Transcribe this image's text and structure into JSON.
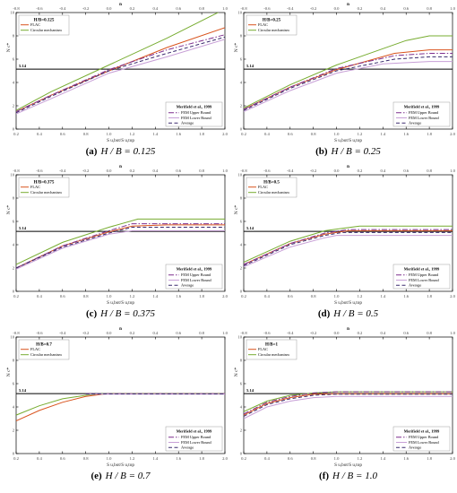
{
  "colors": {
    "flac": "#d9541e",
    "circular": "#77ac30",
    "fem_upper": "#7e2f8e",
    "fem_lower": "#c79fd6",
    "average": "#3a2a6e",
    "ref_line": "#000000",
    "axis": "#000000",
    "tick_label": "#444444"
  },
  "chart_data": [
    {
      "type": "line",
      "caption_prefix": "(a)",
      "caption_math": "H / B = 0.125",
      "panel_label": "H/B=0.125",
      "xlabel": "S u,bot/S u,top",
      "ylabel": "N c*",
      "top_xlabel": "n",
      "xlim": [
        0.2,
        2.0
      ],
      "ylim": [
        0,
        10
      ],
      "x_ticks": [
        "0.2",
        "0.4",
        "0.6",
        "0.8",
        "1.0",
        "1.2",
        "1.4",
        "1.6",
        "1.8",
        "2.0"
      ],
      "y_ticks": [
        "0",
        "2",
        "4",
        "6",
        "8",
        "10"
      ],
      "top_ticks": [
        "-0.8",
        "-0.6",
        "-0.4",
        "-0.2",
        "0.0",
        "0.2",
        "0.4",
        "0.6",
        "0.8",
        "1.0"
      ],
      "ref_value": 5.14,
      "ref_label": "5.14",
      "legend_top": [
        "FLAC",
        "Circular mechanism"
      ],
      "legend_bottom_title": "Merifield et al., 1999",
      "legend_bottom": [
        "FEM Upper Bound",
        "FEM Lower Bound",
        "Average"
      ],
      "series": [
        {
          "name": "FLAC",
          "key": "flac",
          "dash": "",
          "x": [
            0.2,
            0.5,
            1.0,
            1.5,
            2.0
          ],
          "y": [
            1.5,
            2.9,
            5.0,
            7.0,
            8.7
          ]
        },
        {
          "name": "Circular mechanism",
          "key": "circular",
          "dash": "",
          "x": [
            0.2,
            0.5,
            1.0,
            1.5,
            2.0
          ],
          "y": [
            1.6,
            3.2,
            5.5,
            7.8,
            10.3
          ]
        },
        {
          "name": "FEM Upper Bound",
          "key": "fem_upper",
          "dash": "6,2,1.5,2",
          "x": [
            0.2,
            0.5,
            1.0,
            1.5,
            2.0
          ],
          "y": [
            1.5,
            2.9,
            5.1,
            6.8,
            8.1
          ]
        },
        {
          "name": "FEM Lower Bound",
          "key": "fem_lower",
          "dash": "",
          "x": [
            0.2,
            0.5,
            1.0,
            1.5,
            2.0
          ],
          "y": [
            1.3,
            2.6,
            4.8,
            6.2,
            7.7
          ]
        },
        {
          "name": "Average",
          "key": "average",
          "dash": "4,2.5",
          "x": [
            0.2,
            0.5,
            1.0,
            1.5,
            2.0
          ],
          "y": [
            1.4,
            2.8,
            5.0,
            6.5,
            7.9
          ]
        }
      ]
    },
    {
      "type": "line",
      "caption_prefix": "(b)",
      "caption_math": "H / B = 0.25",
      "panel_label": "H/B=0.25",
      "xlabel": "S u,bot/S u,top",
      "ylabel": "N c*",
      "top_xlabel": "n",
      "xlim": [
        0.2,
        2.0
      ],
      "ylim": [
        0,
        10
      ],
      "x_ticks": [
        "0.2",
        "0.4",
        "0.6",
        "0.8",
        "1.0",
        "1.2",
        "1.4",
        "1.6",
        "1.8",
        "2.0"
      ],
      "y_ticks": [
        "0",
        "2",
        "4",
        "6",
        "8",
        "10"
      ],
      "top_ticks": [
        "-0.8",
        "-0.6",
        "-0.4",
        "-0.2",
        "0.0",
        "0.2",
        "0.4",
        "0.6",
        "0.8",
        "1.0"
      ],
      "ref_value": 5.14,
      "ref_label": "5.14",
      "legend_top": [
        "FLAC",
        "Circular mechanism"
      ],
      "legend_bottom_title": "Merifield et al., 1999",
      "legend_bottom": [
        "FEM Upper Bound",
        "FEM Lower Bound",
        "Average"
      ],
      "series": [
        {
          "name": "FLAC",
          "key": "flac",
          "dash": "",
          "x": [
            0.2,
            0.6,
            1.0,
            1.5,
            1.8,
            2.0
          ],
          "y": [
            1.7,
            3.6,
            5.1,
            6.5,
            6.8,
            6.8
          ]
        },
        {
          "name": "Circular mechanism",
          "key": "circular",
          "dash": "",
          "x": [
            0.2,
            0.6,
            1.0,
            1.6,
            1.8,
            2.0
          ],
          "y": [
            1.8,
            3.8,
            5.5,
            7.6,
            8.0,
            8.0
          ]
        },
        {
          "name": "FEM Upper Bound",
          "key": "fem_upper",
          "dash": "6,2,1.5,2",
          "x": [
            0.2,
            0.6,
            1.0,
            1.5,
            1.8,
            2.0
          ],
          "y": [
            1.7,
            3.6,
            5.2,
            6.3,
            6.5,
            6.5
          ]
        },
        {
          "name": "FEM Lower Bound",
          "key": "fem_lower",
          "dash": "",
          "x": [
            0.2,
            0.6,
            1.0,
            1.4,
            1.8,
            2.0
          ],
          "y": [
            1.5,
            3.3,
            4.8,
            5.6,
            5.8,
            5.8
          ]
        },
        {
          "name": "Average",
          "key": "average",
          "dash": "4,2.5",
          "x": [
            0.2,
            0.6,
            1.0,
            1.5,
            1.8,
            2.0
          ],
          "y": [
            1.6,
            3.5,
            5.0,
            6.0,
            6.2,
            6.2
          ]
        }
      ]
    },
    {
      "type": "line",
      "caption_prefix": "(c)",
      "caption_math": "H / B = 0.375",
      "panel_label": "H/B=0.375",
      "xlabel": "S u,bot/S u,top",
      "ylabel": "N c*",
      "top_xlabel": "n",
      "xlim": [
        0.2,
        2.0
      ],
      "ylim": [
        0,
        10
      ],
      "x_ticks": [
        "0.2",
        "0.4",
        "0.6",
        "0.8",
        "1.0",
        "1.2",
        "1.4",
        "1.6",
        "1.8",
        "2.0"
      ],
      "y_ticks": [
        "0",
        "2",
        "4",
        "6",
        "8",
        "10"
      ],
      "top_ticks": [
        "-0.8",
        "-0.6",
        "-0.4",
        "-0.2",
        "0.0",
        "0.2",
        "0.4",
        "0.6",
        "0.8",
        "1.0"
      ],
      "ref_value": 5.14,
      "ref_label": "5.14",
      "legend_top": [
        "FLAC",
        "Circular mechanism"
      ],
      "legend_bottom_title": "Merifield et al., 1999",
      "legend_bottom": [
        "FEM Upper Bound",
        "FEM Lower Bound",
        "Average"
      ],
      "series": [
        {
          "name": "FLAC",
          "key": "flac",
          "dash": "",
          "x": [
            0.2,
            0.6,
            1.0,
            1.2,
            1.5,
            2.0
          ],
          "y": [
            2.0,
            3.9,
            5.1,
            5.6,
            5.7,
            5.7
          ]
        },
        {
          "name": "Circular mechanism",
          "key": "circular",
          "dash": "",
          "x": [
            0.2,
            0.6,
            1.0,
            1.25,
            1.5,
            2.0
          ],
          "y": [
            2.3,
            4.2,
            5.5,
            6.2,
            6.2,
            6.2
          ]
        },
        {
          "name": "FEM Upper Bound",
          "key": "fem_upper",
          "dash": "6,2,1.5,2",
          "x": [
            0.2,
            0.6,
            1.0,
            1.2,
            1.5,
            2.0
          ],
          "y": [
            2.0,
            3.9,
            5.2,
            5.8,
            5.8,
            5.8
          ]
        },
        {
          "name": "FEM Lower Bound",
          "key": "fem_lower",
          "dash": "",
          "x": [
            0.2,
            0.6,
            1.0,
            1.2,
            1.5,
            2.0
          ],
          "y": [
            1.9,
            3.7,
            4.9,
            5.2,
            5.2,
            5.2
          ]
        },
        {
          "name": "Average",
          "key": "average",
          "dash": "4,2.5",
          "x": [
            0.2,
            0.6,
            1.0,
            1.2,
            1.5,
            2.0
          ],
          "y": [
            2.0,
            3.8,
            5.0,
            5.5,
            5.5,
            5.5
          ]
        }
      ]
    },
    {
      "type": "line",
      "caption_prefix": "(d)",
      "caption_math": "H / B = 0.5",
      "panel_label": "H/B=0.5",
      "xlabel": "S u,bot/S u,top",
      "ylabel": "N c*",
      "top_xlabel": "n",
      "xlim": [
        0.2,
        2.0
      ],
      "ylim": [
        0,
        10
      ],
      "x_ticks": [
        "0.2",
        "0.4",
        "0.6",
        "0.8",
        "1.0",
        "1.2",
        "1.4",
        "1.6",
        "1.8",
        "2.0"
      ],
      "y_ticks": [
        "0",
        "2",
        "4",
        "6",
        "8",
        "10"
      ],
      "top_ticks": [
        "-0.8",
        "-0.6",
        "-0.4",
        "-0.2",
        "0.0",
        "0.2",
        "0.4",
        "0.6",
        "0.8",
        "1.0"
      ],
      "ref_value": 5.14,
      "ref_label": "5.14",
      "legend_top": [
        "FLAC",
        "Circular mechanism"
      ],
      "legend_bottom_title": "Merifield et al., 1999",
      "legend_bottom": [
        "FEM Upper Bound",
        "FEM Lower Bound",
        "Average"
      ],
      "series": [
        {
          "name": "FLAC",
          "key": "flac",
          "dash": "",
          "x": [
            0.2,
            0.6,
            0.9,
            1.1,
            1.5,
            2.0
          ],
          "y": [
            2.3,
            4.1,
            4.9,
            5.2,
            5.2,
            5.2
          ]
        },
        {
          "name": "Circular mechanism",
          "key": "circular",
          "dash": "",
          "x": [
            0.2,
            0.6,
            0.9,
            1.2,
            1.5,
            2.0
          ],
          "y": [
            2.5,
            4.3,
            5.2,
            5.6,
            5.6,
            5.6
          ]
        },
        {
          "name": "FEM Upper Bound",
          "key": "fem_upper",
          "dash": "6,2,1.5,2",
          "x": [
            0.2,
            0.6,
            0.9,
            1.1,
            1.5,
            2.0
          ],
          "y": [
            2.3,
            4.1,
            5.0,
            5.3,
            5.3,
            5.3
          ]
        },
        {
          "name": "FEM Lower Bound",
          "key": "fem_lower",
          "dash": "",
          "x": [
            0.2,
            0.6,
            0.9,
            1.0,
            1.5,
            2.0
          ],
          "y": [
            2.1,
            3.8,
            4.6,
            4.8,
            4.8,
            4.8
          ]
        },
        {
          "name": "Average",
          "key": "average",
          "dash": "4,2.5",
          "x": [
            0.2,
            0.6,
            0.9,
            1.05,
            1.5,
            2.0
          ],
          "y": [
            2.2,
            4.0,
            4.8,
            5.05,
            5.05,
            5.05
          ]
        }
      ]
    },
    {
      "type": "line",
      "caption_prefix": "(e)",
      "caption_math": "H / B = 0.7",
      "panel_label": "H/B=0.7",
      "xlabel": "S u,bot/S u,top",
      "ylabel": "N c*",
      "top_xlabel": "n",
      "xlim": [
        0.2,
        2.0
      ],
      "ylim": [
        0,
        10
      ],
      "x_ticks": [
        "0.2",
        "0.4",
        "0.6",
        "0.8",
        "1.0",
        "1.2",
        "1.4",
        "1.6",
        "1.8",
        "2.0"
      ],
      "y_ticks": [
        "0",
        "2",
        "4",
        "6",
        "8",
        "10"
      ],
      "top_ticks": [
        "-0.8",
        "-0.6",
        "-0.4",
        "-0.2",
        "0.0",
        "0.2",
        "0.4",
        "0.6",
        "0.8",
        "1.0"
      ],
      "ref_value": 5.14,
      "ref_label": "5.14",
      "legend_top": [
        "FLAC",
        "Circular mechanism"
      ],
      "legend_bottom_title": "Merifield et al., 1999",
      "legend_bottom": [
        "FEM Upper Bound",
        "FEM Lower Bound",
        "Average"
      ],
      "series": [
        {
          "name": "FLAC",
          "key": "flac",
          "dash": "",
          "x": [
            0.2,
            0.4,
            0.6,
            0.8,
            0.95,
            1.0,
            2.0
          ],
          "y": [
            2.8,
            3.7,
            4.4,
            4.9,
            5.1,
            5.14,
            5.14
          ]
        },
        {
          "name": "Circular mechanism",
          "key": "circular",
          "dash": "",
          "x": [
            0.2,
            0.4,
            0.6,
            0.8,
            0.92,
            1.0,
            2.0
          ],
          "y": [
            3.3,
            4.1,
            4.7,
            5.0,
            5.14,
            5.14,
            5.14
          ]
        },
        {
          "name": "FEM Upper Bound",
          "key": "fem_upper",
          "dash": "6,2,1.5,2",
          "x": [
            0.8,
            1.0,
            2.0
          ],
          "y": [
            5.14,
            5.14,
            5.14
          ]
        },
        {
          "name": "FEM Lower Bound",
          "key": "fem_lower",
          "dash": "",
          "x": [
            0.8,
            1.0,
            2.0
          ],
          "y": [
            5.1,
            5.1,
            5.1
          ]
        },
        {
          "name": "Average",
          "key": "average",
          "dash": "4,2.5",
          "x": [
            0.8,
            1.0,
            2.0
          ],
          "y": [
            5.12,
            5.12,
            5.12
          ]
        }
      ]
    },
    {
      "type": "line",
      "caption_prefix": "(f)",
      "caption_math": "H / B = 1.0",
      "panel_label": "H/B=1",
      "xlabel": "S u,bot/S u,top",
      "ylabel": "N c*",
      "top_xlabel": "n",
      "xlim": [
        0.2,
        2.0
      ],
      "ylim": [
        0,
        10
      ],
      "x_ticks": [
        "0.2",
        "0.4",
        "0.6",
        "0.8",
        "1.0",
        "1.2",
        "1.4",
        "1.6",
        "1.8",
        "2.0"
      ],
      "y_ticks": [
        "0",
        "2",
        "4",
        "6",
        "8",
        "10"
      ],
      "top_ticks": [
        "-0.8",
        "-0.6",
        "-0.4",
        "-0.2",
        "0.0",
        "0.2",
        "0.4",
        "0.6",
        "0.8",
        "1.0"
      ],
      "ref_value": 5.14,
      "ref_label": "5.14",
      "legend_top": [
        "FLAC",
        "Circular mechanism"
      ],
      "legend_bottom_title": "Merifield et al., 1999",
      "legend_bottom": [
        "FEM Upper Bound",
        "FEM Lower Bound",
        "Average"
      ],
      "series": [
        {
          "name": "FLAC",
          "key": "flac",
          "dash": "",
          "x": [
            0.2,
            0.4,
            0.6,
            0.8,
            1.0,
            2.0
          ],
          "y": [
            3.3,
            4.3,
            4.8,
            5.1,
            5.14,
            5.14
          ]
        },
        {
          "name": "Circular mechanism",
          "key": "circular",
          "dash": "",
          "x": [
            0.2,
            0.4,
            0.6,
            0.8,
            1.0,
            2.0
          ],
          "y": [
            3.6,
            4.5,
            5.0,
            5.2,
            5.3,
            5.3
          ]
        },
        {
          "name": "FEM Upper Bound",
          "key": "fem_upper",
          "dash": "6,2,1.5,2",
          "x": [
            0.2,
            0.4,
            0.6,
            0.8,
            1.0,
            2.0
          ],
          "y": [
            3.4,
            4.4,
            4.9,
            5.2,
            5.3,
            5.3
          ]
        },
        {
          "name": "FEM Lower Bound",
          "key": "fem_lower",
          "dash": "",
          "x": [
            0.2,
            0.4,
            0.6,
            0.8,
            1.0,
            2.0
          ],
          "y": [
            3.0,
            4.0,
            4.5,
            4.8,
            4.9,
            4.9
          ]
        },
        {
          "name": "Average",
          "key": "average",
          "dash": "4,2.5",
          "x": [
            0.2,
            0.4,
            0.6,
            0.8,
            1.0,
            2.0
          ],
          "y": [
            3.2,
            4.2,
            4.7,
            5.0,
            5.1,
            5.1
          ]
        }
      ]
    }
  ]
}
